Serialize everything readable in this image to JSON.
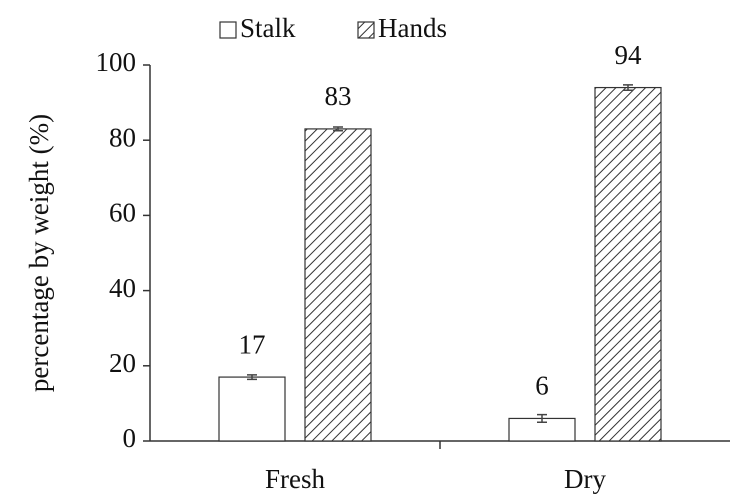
{
  "chart_data": {
    "type": "bar",
    "y_label": "percentage by weight (%)",
    "categories": [
      "Fresh",
      "Dry"
    ],
    "series": [
      {
        "name": "Stalk",
        "color": "#ffffff",
        "hatch": false,
        "values": [
          17,
          6
        ],
        "errors": [
          0.6,
          1.0
        ]
      },
      {
        "name": "Hands",
        "color": "#ffffff",
        "hatch": true,
        "values": [
          83,
          94
        ],
        "errors": [
          0.5,
          0.7
        ]
      }
    ],
    "ylim": [
      0,
      100
    ],
    "yticks": [
      0,
      20,
      40,
      60,
      80,
      100
    ],
    "grid": false,
    "legend": "top",
    "data_labels": true
  }
}
